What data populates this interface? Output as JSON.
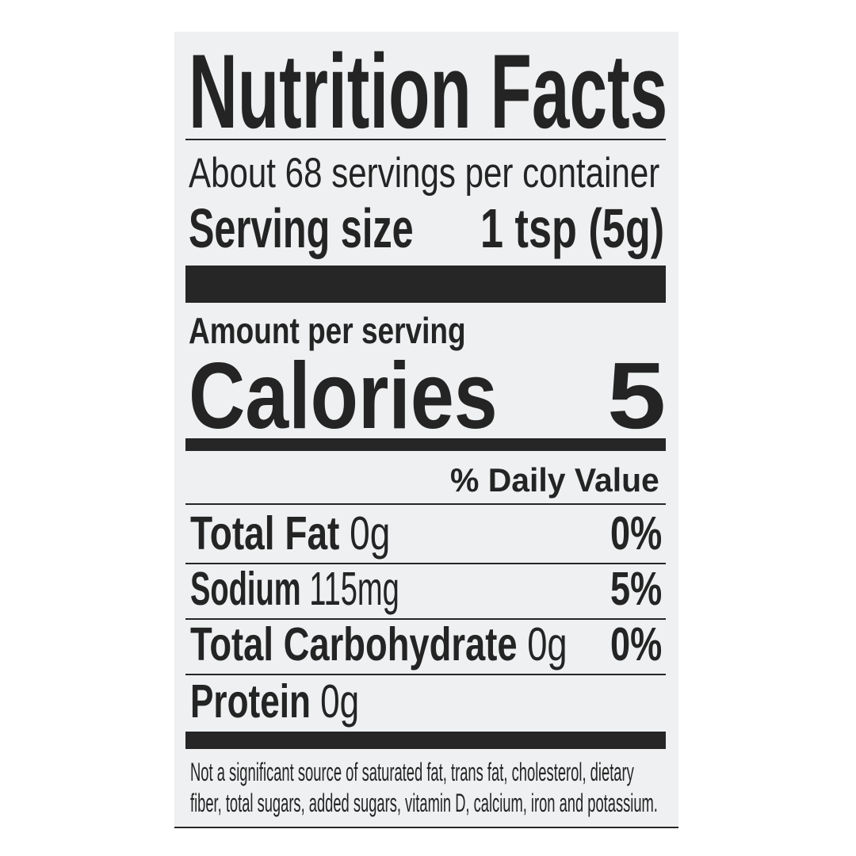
{
  "label": {
    "title": "Nutrition Facts",
    "servings_per_container": "About 68 servings per container",
    "serving_size_label": "Serving size",
    "serving_size_value": "1 tsp (5g)",
    "amount_per_serving": "Amount per serving",
    "calories_label": "Calories",
    "calories_value": "5",
    "daily_value_header": "% Daily Value",
    "nutrients": [
      {
        "name": "Total Fat",
        "amount": " 0g",
        "dv": "0%"
      },
      {
        "name": "Sodium",
        "amount": " 115mg",
        "dv": "5%"
      },
      {
        "name": "Total Carbohydrate",
        "amount": " 0g",
        "dv": "0%"
      },
      {
        "name": "Protein",
        "amount": " 0g",
        "dv": ""
      }
    ],
    "footnote_line1": "Not a significant source of saturated fat, trans fat, cholesterol, dietary",
    "footnote_line2": "fiber, total sugars, added sugars, vitamin D, calcium, iron and potassium."
  },
  "colors": {
    "ink": "#242424",
    "panel": "#eef0f1",
    "background": "#ffffff"
  }
}
